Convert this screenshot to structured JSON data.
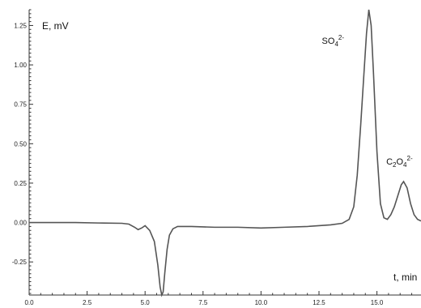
{
  "chart_data": {
    "type": "line",
    "title": "",
    "ylabel": "E, mV",
    "xlabel": "t, min",
    "xlim": [
      0,
      16.9
    ],
    "ylim": [
      -0.46,
      1.35
    ],
    "grid": false,
    "x_ticks": [
      "0.0",
      "2.5",
      "5.0",
      "7.5",
      "10.0",
      "12.5",
      "15.0"
    ],
    "y_ticks": [
      "-0.25",
      "0.00",
      "0.25",
      "0.50",
      "0.75",
      "1.00",
      "1.25"
    ],
    "annotations": [
      {
        "label": "SO",
        "sub": "4",
        "sup": "2-",
        "x": 14.65,
        "y": 1.35
      },
      {
        "label": "C",
        "sub": "2",
        "mid": "O",
        "sub2": "4",
        "sup": "2-",
        "x": 16.1,
        "y": 0.26
      }
    ],
    "series": [
      {
        "x": [
          0,
          1,
          2,
          3,
          4,
          4.3,
          4.55,
          4.7,
          4.85,
          5.0,
          5.2,
          5.4,
          5.55,
          5.65,
          5.72,
          5.78,
          5.85,
          5.95,
          6.05,
          6.2,
          6.4,
          7,
          8,
          9,
          10,
          11,
          12,
          13,
          13.5,
          13.8,
          14.0,
          14.15,
          14.3,
          14.45,
          14.55,
          14.65,
          14.75,
          14.85,
          15.0,
          15.15,
          15.3,
          15.45,
          15.6,
          15.75,
          15.9,
          16.05,
          16.15,
          16.3,
          16.45,
          16.6,
          16.75,
          16.9
        ],
        "y": [
          0.0,
          0.0,
          0.0,
          -0.003,
          -0.005,
          -0.01,
          -0.03,
          -0.045,
          -0.035,
          -0.02,
          -0.05,
          -0.12,
          -0.27,
          -0.41,
          -0.46,
          -0.44,
          -0.32,
          -0.17,
          -0.08,
          -0.04,
          -0.025,
          -0.025,
          -0.03,
          -0.03,
          -0.035,
          -0.03,
          -0.025,
          -0.015,
          -0.005,
          0.02,
          0.1,
          0.3,
          0.62,
          0.97,
          1.2,
          1.35,
          1.25,
          0.95,
          0.45,
          0.12,
          0.03,
          0.02,
          0.05,
          0.1,
          0.17,
          0.24,
          0.26,
          0.22,
          0.12,
          0.05,
          0.02,
          0.01
        ]
      }
    ]
  }
}
